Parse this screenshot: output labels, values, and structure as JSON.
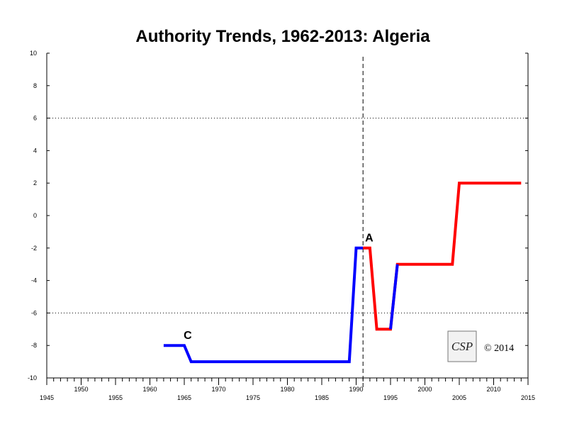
{
  "chart_data": {
    "type": "line",
    "title": "Authority Trends, 1962-2013: Algeria",
    "xlabel": "",
    "ylabel": "",
    "xlim": [
      1945,
      2015
    ],
    "ylim": [
      -10,
      10
    ],
    "x_major_ticks": [
      1945,
      1950,
      1955,
      1960,
      1965,
      1970,
      1975,
      1980,
      1985,
      1990,
      1995,
      2000,
      2005,
      2010,
      2015
    ],
    "y_ticks": [
      -10,
      -8,
      -6,
      -4,
      -2,
      0,
      2,
      4,
      6,
      8,
      10
    ],
    "reference_lines_y": [
      6,
      -6
    ],
    "event_line_x": 1991,
    "series": [
      {
        "color": "#0000ff",
        "points": [
          [
            1962,
            -8
          ],
          [
            1965,
            -8
          ],
          [
            1966,
            -9
          ],
          [
            1989,
            -9
          ],
          [
            1990,
            -2
          ],
          [
            1991,
            -2
          ]
        ]
      },
      {
        "color": "#ff0000",
        "points": [
          [
            1991,
            -2
          ],
          [
            1992,
            -2
          ],
          [
            1993,
            -7
          ],
          [
            1995,
            -7
          ],
          [
            1996,
            -3
          ],
          [
            2004,
            -3
          ],
          [
            2005,
            2
          ],
          [
            2014,
            2
          ]
        ]
      },
      {
        "color": "#0000ff",
        "points": [
          [
            1995,
            -7
          ],
          [
            1996,
            -3
          ]
        ]
      }
    ],
    "annotations": [
      {
        "text": "C",
        "x": 1965.5,
        "y": -7.6
      },
      {
        "text": "A",
        "x": 1991.9,
        "y": -1.6
      }
    ],
    "copyright": "© 2014",
    "logo_text": "CSP"
  }
}
